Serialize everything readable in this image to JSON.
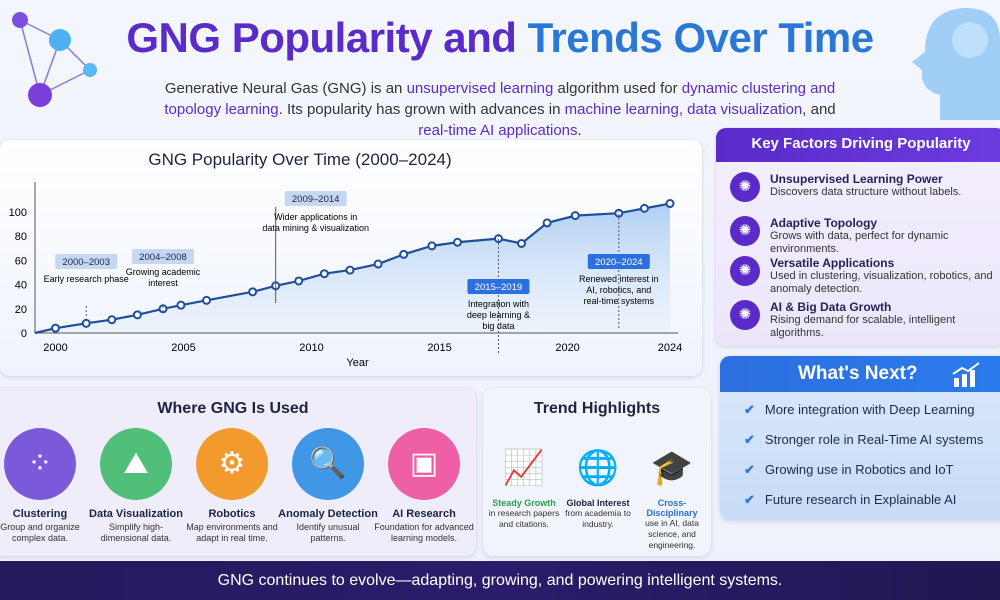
{
  "header": {
    "title_part1": "GNG Popularity and",
    "title_part2": "Trends Over Time",
    "subtitle": [
      "Generative Neural Gas (GNG) is an ",
      "unsupervised learning",
      " algorithm used for ",
      "dynamic clustering and topology learning",
      ". Its popularity has grown with advances in ",
      "machine learning, data visualization",
      ", and ",
      "real-time AI applications",
      "."
    ]
  },
  "colors": {
    "purple": "#5a2bc8",
    "blue": "#2a78d6",
    "navy": "#241a5c",
    "line": "#1f4f9a"
  },
  "chart_data": {
    "type": "area",
    "title": "GNG Popularity Over Time (2000–2024)",
    "xlabel": "Year",
    "ylabel": "",
    "xlim": [
      1999.2,
      2024
    ],
    "ylim": [
      0,
      100
    ],
    "xticks": [
      2000,
      2005,
      2010,
      2015,
      2020,
      2024
    ],
    "yticks": [
      0,
      20,
      40,
      60,
      80,
      100
    ],
    "grid": false,
    "points": [
      [
        1999.2,
        0
      ],
      [
        2000,
        4
      ],
      [
        2001.2,
        8
      ],
      [
        2002.2,
        11
      ],
      [
        2003.2,
        15
      ],
      [
        2004.2,
        20
      ],
      [
        2004.9,
        23
      ],
      [
        2005.9,
        27
      ],
      [
        2007.7,
        34
      ],
      [
        2008.6,
        39
      ],
      [
        2009.5,
        43
      ],
      [
        2010.5,
        49
      ],
      [
        2011.5,
        52
      ],
      [
        2012.6,
        57
      ],
      [
        2013.6,
        65
      ],
      [
        2014.7,
        72
      ],
      [
        2015.7,
        75
      ],
      [
        2017.3,
        78
      ],
      [
        2018.2,
        74
      ],
      [
        2019.2,
        91
      ],
      [
        2020.3,
        97
      ],
      [
        2022,
        99
      ],
      [
        2023,
        103
      ],
      [
        2024,
        107
      ]
    ],
    "annotations": [
      {
        "period": "2000–2003",
        "text": [
          "Early research phase"
        ],
        "x": 2001.2
      },
      {
        "period": "2004–2008",
        "text": [
          "Growing academic",
          "interest"
        ],
        "x": 2004.2
      },
      {
        "period": "2009–2014",
        "text": [
          "Wider applications in",
          "data mining & visualization"
        ],
        "x": 2008.6
      },
      {
        "period": "2015–2019",
        "text": [
          "Integration with",
          "deep learning &",
          "big data"
        ],
        "x": 2017.3
      },
      {
        "period": "2020–2024",
        "text": [
          "Renewed interest in",
          "AI, robotics, and",
          "real-time systems"
        ],
        "x": 2022
      }
    ]
  },
  "key_factors": {
    "title": "Key Factors Driving Popularity",
    "items": [
      {
        "icon": "gear-brain-icon",
        "title": "Unsupervised Learning Power",
        "desc": "Discovers data structure without labels."
      },
      {
        "icon": "topology-icon",
        "title": "Adaptive Topology",
        "desc": "Grows with data, perfect for dynamic environments."
      },
      {
        "icon": "apps-icon",
        "title": "Versatile Applications",
        "desc": "Used in clustering, visualization, robotics, and anomaly detection."
      },
      {
        "icon": "network-burst-icon",
        "title": "AI & Big Data Growth",
        "desc": "Rising demand for scalable, intelligent algorithms."
      }
    ]
  },
  "whats_next": {
    "title": "What's Next?",
    "items": [
      "More integration with Deep Learning",
      "Stronger role in Real-Time AI systems",
      "Growing use in Robotics and IoT",
      "Future research in Explainable AI"
    ]
  },
  "where_used": {
    "title": "Where GNG Is Used",
    "items": [
      {
        "title": "Clustering",
        "desc": "Group and organize complex data.",
        "color": "#7b5ad9",
        "glyph": "⁘"
      },
      {
        "title": "Data Visualization",
        "desc": "Simplify high-dimensional data.",
        "color": "#4fbf7a",
        "glyph": "⛰"
      },
      {
        "title": "Robotics",
        "desc": "Map environments and adapt in real time.",
        "color": "#f39a2e",
        "glyph": "⚙"
      },
      {
        "title": "Anomaly Detection",
        "desc": "Identify unusual patterns.",
        "color": "#3f97e6",
        "glyph": "🔍"
      },
      {
        "title": "AI Research",
        "desc": "Foundation for advanced learning models.",
        "color": "#ef5fa5",
        "glyph": "▣"
      }
    ]
  },
  "trend_highlights": {
    "title": "Trend Highlights",
    "items": [
      {
        "title": "Steady Growth",
        "desc": "in research papers and citations.",
        "color": "#2e9e52",
        "glyph": "📈"
      },
      {
        "title": "Global Interest",
        "desc": "from academia to industry.",
        "color": "#1e2340",
        "glyph": "🌐"
      },
      {
        "title": "Cross-Disciplinary",
        "desc": "use in AI, data science, and engineering.",
        "color": "#2a6fd0",
        "glyph": "🎓"
      }
    ]
  },
  "footer": "GNG continues to evolve—adapting, growing, and powering intelligent systems."
}
